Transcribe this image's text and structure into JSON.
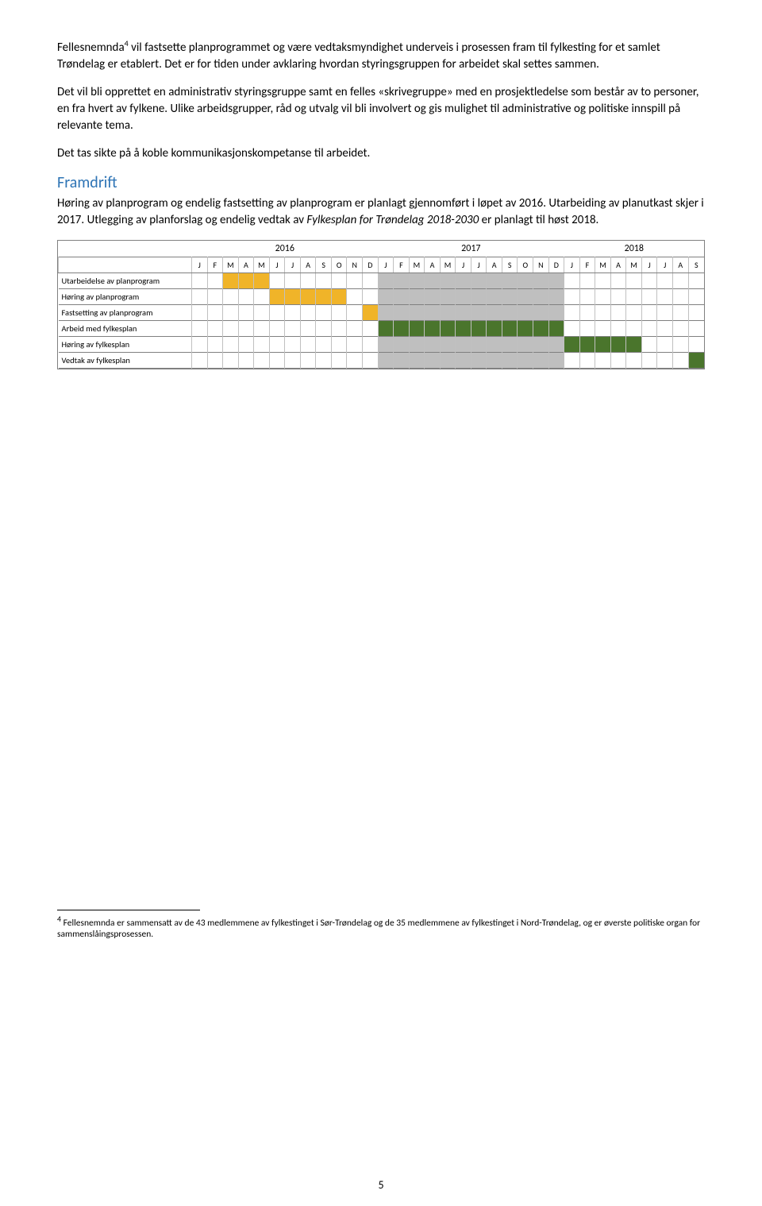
{
  "paragraphs": {
    "p1a": "Fellesnemnda",
    "p1sup": "4",
    "p1b": " vil fastsette planprogrammet og være vedtaksmyndighet underveis i prosessen fram til fylkesting for et samlet Trøndelag er etablert. Det er for tiden under avklaring hvordan styringsgruppen for arbeidet skal settes sammen.",
    "p2": "Det vil bli opprettet en administrativ styringsgruppe samt en felles «skrivegruppe» med en prosjektledelse som består av to personer, en fra hvert av fylkene. Ulike arbeidsgrupper, råd og utvalg vil bli involvert og gis mulighet til administrative og politiske innspill på relevante tema.",
    "p3": "Det tas sikte på å koble kommunikasjonskompetanse til arbeidet.",
    "heading": "Framdrift",
    "p4a": "Høring av planprogram og endelig fastsetting av planprogram er planlagt gjennomført i løpet av 2016. Utarbeiding av planutkast skjer i 2017. Utlegging av planforslag og endelig vedtak av ",
    "p4italic": "Fylkesplan for Trøndelag  2018-2030",
    "p4b": " er planlagt til høst 2018."
  },
  "gantt": {
    "years": [
      "2016",
      "2017",
      "2018"
    ],
    "months": [
      "J",
      "F",
      "M",
      "A",
      "M",
      "J",
      "J",
      "A",
      "S",
      "O",
      "N",
      "D",
      "J",
      "F",
      "M",
      "A",
      "M",
      "J",
      "J",
      "A",
      "S",
      "O",
      "N",
      "D",
      "J",
      "F",
      "M",
      "A",
      "M",
      "J",
      "J",
      "A",
      "S"
    ],
    "colors": {
      "yellow": "#f0b429",
      "green": "#4a752c",
      "grey": "#bfbfbf",
      "bg": "#ffffff"
    },
    "rows": [
      {
        "label": "Utarbeidelse av planprogram",
        "cells": [
          "",
          "",
          "y",
          "y",
          "y",
          "",
          "",
          "",
          "",
          "",
          "",
          "",
          "g",
          "g",
          "g",
          "g",
          "g",
          "g",
          "g",
          "g",
          "g",
          "g",
          "g",
          "g",
          "",
          "",
          "",
          "",
          "",
          "",
          "",
          "",
          ""
        ]
      },
      {
        "label": "Høring av planprogram",
        "cells": [
          "",
          "",
          "",
          "",
          "",
          "y",
          "y",
          "y",
          "y",
          "y",
          "",
          "",
          "g",
          "g",
          "g",
          "g",
          "g",
          "g",
          "g",
          "g",
          "g",
          "g",
          "g",
          "g",
          "",
          "",
          "",
          "",
          "",
          "",
          "",
          "",
          ""
        ]
      },
      {
        "label": "Fastsetting av planprogram",
        "cells": [
          "",
          "",
          "",
          "",
          "",
          "",
          "",
          "",
          "",
          "",
          "",
          "y",
          "g",
          "g",
          "g",
          "g",
          "g",
          "g",
          "g",
          "g",
          "g",
          "g",
          "g",
          "g",
          "",
          "",
          "",
          "",
          "",
          "",
          "",
          "",
          ""
        ]
      },
      {
        "label": "Arbeid med fylkesplan",
        "cells": [
          "",
          "",
          "",
          "",
          "",
          "",
          "",
          "",
          "",
          "",
          "",
          "",
          "G",
          "G",
          "G",
          "G",
          "G",
          "G",
          "G",
          "G",
          "G",
          "G",
          "G",
          "G",
          "",
          "",
          "",
          "",
          "",
          "",
          "",
          "",
          ""
        ]
      },
      {
        "label": "Høring av fylkesplan",
        "cells": [
          "",
          "",
          "",
          "",
          "",
          "",
          "",
          "",
          "",
          "",
          "",
          "",
          "g",
          "g",
          "g",
          "g",
          "g",
          "g",
          "g",
          "g",
          "g",
          "g",
          "g",
          "g",
          "G",
          "G",
          "G",
          "G",
          "G",
          "",
          "",
          "",
          ""
        ]
      },
      {
        "label": "Vedtak av fylkesplan",
        "cells": [
          "",
          "",
          "",
          "",
          "",
          "",
          "",
          "",
          "",
          "",
          "",
          "",
          "g",
          "g",
          "g",
          "g",
          "g",
          "g",
          "g",
          "g",
          "g",
          "g",
          "g",
          "g",
          "",
          "",
          "",
          "",
          "",
          "",
          "",
          "",
          "G"
        ]
      }
    ]
  },
  "footnote": {
    "sup": "4",
    "text": " Fellesnemnda er sammensatt av de 43 medlemmene av fylkestinget i Sør-Trøndelag og de 35 medlemmene av fylkestinget i Nord-Trøndelag, og er øverste politiske organ for sammenslåingsprosessen."
  },
  "pagenum": "5"
}
